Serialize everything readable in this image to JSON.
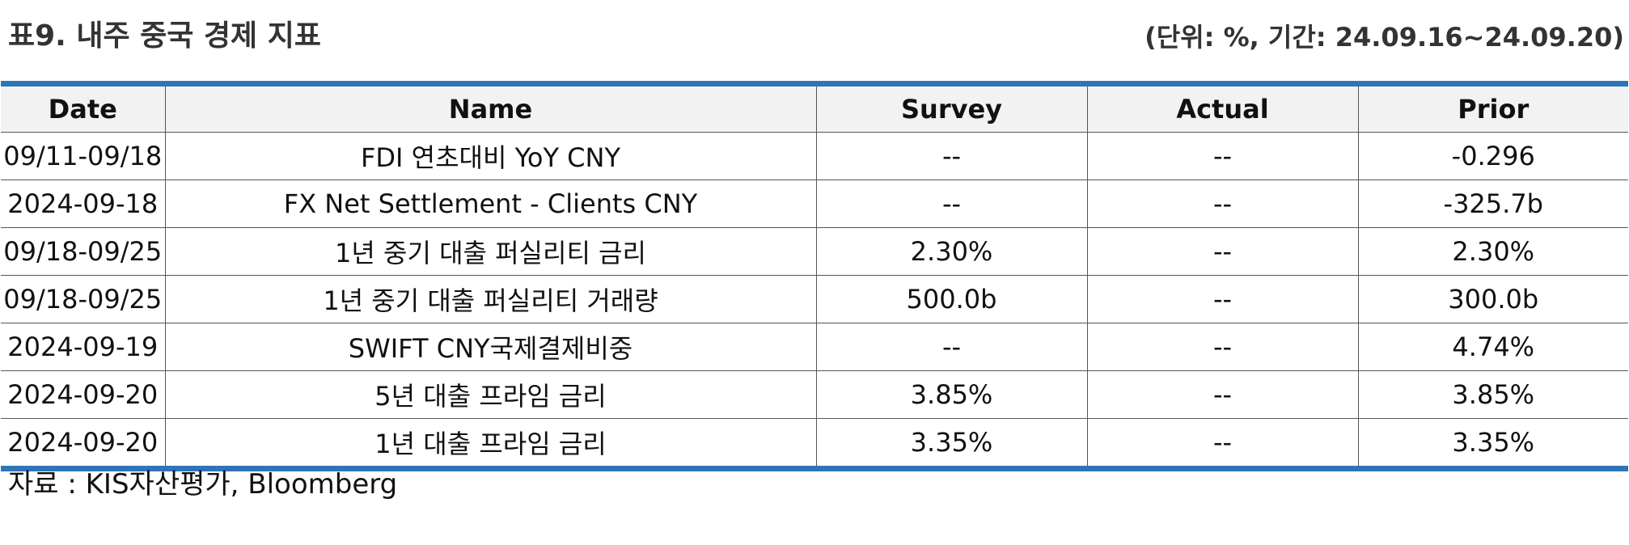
{
  "header": {
    "title": "표9. 내주 중국 경제 지표",
    "unit_note": "(단위: %, 기간: 24.09.16~24.09.20)"
  },
  "table": {
    "columns": [
      "Date",
      "Name",
      "Survey",
      "Actual",
      "Prior"
    ],
    "rows": [
      [
        "09/11-09/18",
        "FDI 연초대비 YoY CNY",
        "--",
        "--",
        "-0.296"
      ],
      [
        "2024-09-18",
        "FX Net Settlement - Clients CNY",
        "--",
        "--",
        "-325.7b"
      ],
      [
        "09/18-09/25",
        "1년 중기 대출 퍼실리티 금리",
        "2.30%",
        "--",
        "2.30%"
      ],
      [
        "09/18-09/25",
        "1년 중기 대출 퍼실리티 거래량",
        "500.0b",
        "--",
        "300.0b"
      ],
      [
        "2024-09-19",
        "SWIFT CNY국제결제비중",
        "--",
        "--",
        "4.74%"
      ],
      [
        "2024-09-20",
        "5년 대출 프라임 금리",
        "3.85%",
        "--",
        "3.85%"
      ],
      [
        "2024-09-20",
        "1년 대출 프라임 금리",
        "3.35%",
        "--",
        "3.35%"
      ]
    ]
  },
  "footer": {
    "source": "자료 : KIS자산평가, Bloomberg"
  },
  "colors": {
    "accent_rule": "#2e75b6",
    "header_fill": "#f2f2f2"
  }
}
